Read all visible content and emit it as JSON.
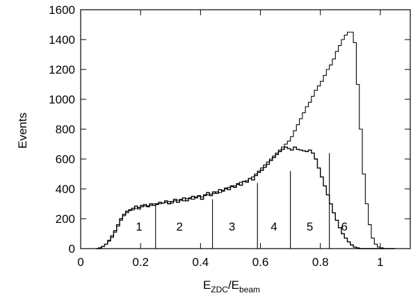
{
  "chart_data": {
    "type": "line",
    "xlabel_main": "E",
    "xlabel_sub1": "ZDC",
    "xlabel_slash": "/E",
    "xlabel_sub2": "beam",
    "ylabel": "Events",
    "xlim": [
      0,
      1.1
    ],
    "ylim": [
      0,
      1600
    ],
    "x_ticks": [
      0,
      0.2,
      0.4,
      0.6,
      0.8,
      1
    ],
    "x_tick_labels": [
      "0",
      "0.2",
      "0.4",
      "0.6",
      "0.8",
      "1"
    ],
    "y_ticks": [
      0,
      200,
      400,
      600,
      800,
      1000,
      1200,
      1400,
      1600
    ],
    "y_tick_labels": [
      "0",
      "200",
      "400",
      "600",
      "800",
      "1000",
      "1200",
      "1400",
      "1600"
    ],
    "grid": false,
    "bin_width": 0.01,
    "series": [
      {
        "x": [
          0.05,
          0.06,
          0.07,
          0.08,
          0.09,
          0.1,
          0.11,
          0.12,
          0.13,
          0.14,
          0.15,
          0.16,
          0.17,
          0.18,
          0.19,
          0.2,
          0.21,
          0.22,
          0.23,
          0.24,
          0.25,
          0.26,
          0.27,
          0.28,
          0.29,
          0.3,
          0.31,
          0.32,
          0.33,
          0.34,
          0.35,
          0.36,
          0.37,
          0.38,
          0.39,
          0.4,
          0.41,
          0.42,
          0.43,
          0.44,
          0.45,
          0.46,
          0.47,
          0.48,
          0.49,
          0.5,
          0.51,
          0.52,
          0.53,
          0.54,
          0.55,
          0.56,
          0.57,
          0.58,
          0.59,
          0.6,
          0.61,
          0.62,
          0.63,
          0.64,
          0.65,
          0.66,
          0.67,
          0.68,
          0.69,
          0.7,
          0.71,
          0.72,
          0.73,
          0.74,
          0.75,
          0.76,
          0.77,
          0.78,
          0.79,
          0.8,
          0.81,
          0.82,
          0.83,
          0.84,
          0.85,
          0.86,
          0.87,
          0.88,
          0.89,
          0.9,
          0.91,
          0.92,
          0.93,
          0.94,
          0.95,
          0.96,
          0.97,
          0.98,
          0.99,
          1.0,
          1.01,
          1.02,
          1.03,
          1.04
        ],
        "y": [
          0,
          5,
          15,
          30,
          50,
          75,
          110,
          150,
          190,
          220,
          240,
          255,
          260,
          270,
          265,
          280,
          285,
          280,
          290,
          300,
          295,
          300,
          305,
          310,
          315,
          305,
          320,
          325,
          330,
          320,
          335,
          340,
          330,
          345,
          350,
          345,
          355,
          360,
          365,
          370,
          380,
          375,
          390,
          400,
          410,
          415,
          420,
          430,
          445,
          450,
          455,
          470,
          480,
          500,
          520,
          540,
          560,
          580,
          600,
          620,
          640,
          660,
          680,
          700,
          720,
          750,
          790,
          830,
          870,
          910,
          950,
          980,
          1020,
          1060,
          1090,
          1120,
          1160,
          1200,
          1230,
          1270,
          1320,
          1360,
          1400,
          1430,
          1450,
          1450,
          1380,
          1100,
          800,
          500,
          300,
          160,
          70,
          30,
          10,
          5,
          0,
          0,
          0,
          0
        ]
      },
      {
        "x": [
          0.05,
          0.06,
          0.07,
          0.08,
          0.09,
          0.1,
          0.11,
          0.12,
          0.13,
          0.14,
          0.15,
          0.16,
          0.17,
          0.18,
          0.19,
          0.2,
          0.21,
          0.22,
          0.23,
          0.24,
          0.25,
          0.26,
          0.27,
          0.28,
          0.29,
          0.3,
          0.31,
          0.32,
          0.33,
          0.34,
          0.35,
          0.36,
          0.37,
          0.38,
          0.39,
          0.4,
          0.41,
          0.42,
          0.43,
          0.44,
          0.45,
          0.46,
          0.47,
          0.48,
          0.49,
          0.5,
          0.51,
          0.52,
          0.53,
          0.54,
          0.55,
          0.56,
          0.57,
          0.58,
          0.59,
          0.6,
          0.61,
          0.62,
          0.63,
          0.64,
          0.65,
          0.66,
          0.67,
          0.68,
          0.69,
          0.7,
          0.71,
          0.72,
          0.73,
          0.74,
          0.75,
          0.76,
          0.77,
          0.78,
          0.79,
          0.8,
          0.81,
          0.82,
          0.83,
          0.84,
          0.85,
          0.86,
          0.87,
          0.88,
          0.89,
          0.9,
          0.91,
          0.92,
          0.93,
          0.94,
          0.95,
          0.96,
          0.97,
          0.98,
          0.99,
          1.0,
          1.01,
          1.02,
          1.03,
          1.04
        ],
        "y": [
          0,
          5,
          15,
          30,
          55,
          85,
          120,
          160,
          200,
          230,
          250,
          260,
          270,
          285,
          275,
          290,
          295,
          285,
          300,
          290,
          300,
          310,
          305,
          320,
          300,
          315,
          330,
          310,
          325,
          340,
          320,
          335,
          350,
          340,
          355,
          330,
          360,
          375,
          355,
          380,
          370,
          395,
          385,
          405,
          395,
          420,
          410,
          435,
          425,
          450,
          445,
          470,
          460,
          490,
          510,
          525,
          545,
          565,
          590,
          610,
          630,
          650,
          665,
          680,
          670,
          660,
          680,
          665,
          660,
          655,
          650,
          660,
          640,
          600,
          540,
          480,
          420,
          360,
          300,
          240,
          190,
          140,
          100,
          70,
          45,
          25,
          10,
          5,
          0,
          0,
          0,
          0,
          0,
          0,
          0,
          0,
          0,
          0,
          0,
          0
        ]
      }
    ],
    "divider_lines": [
      {
        "x": 0.25,
        "y_top": 300
      },
      {
        "x": 0.44,
        "y_top": 330
      },
      {
        "x": 0.59,
        "y_top": 440
      },
      {
        "x": 0.7,
        "y_top": 520
      },
      {
        "x": 0.83,
        "y_top": 640
      }
    ],
    "region_labels": [
      {
        "text": "1",
        "x": 0.195,
        "y": 150
      },
      {
        "text": "2",
        "x": 0.33,
        "y": 150
      },
      {
        "text": "3",
        "x": 0.505,
        "y": 150
      },
      {
        "text": "4",
        "x": 0.645,
        "y": 150
      },
      {
        "text": "5",
        "x": 0.765,
        "y": 150
      },
      {
        "text": "6",
        "x": 0.88,
        "y": 150
      }
    ]
  }
}
